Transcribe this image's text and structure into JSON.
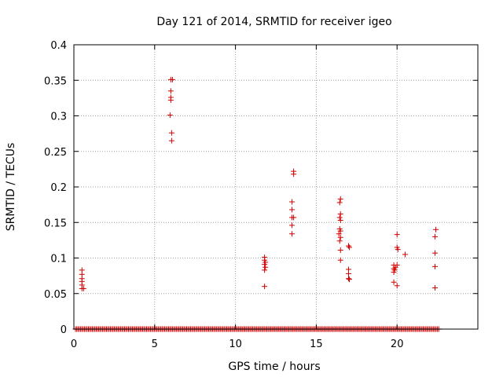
{
  "chart_data": {
    "type": "scatter",
    "title": "Day 121 of 2014, SRMTID for receiver igeo",
    "xlabel": "GPS time / hours",
    "ylabel": "SRMTID / TECUs",
    "xlim": [
      0,
      25
    ],
    "ylim": [
      0,
      0.4
    ],
    "x_ticks": [
      0,
      5,
      10,
      15,
      20
    ],
    "x_tick_labels": [
      "0",
      "5",
      "10",
      "15",
      "20"
    ],
    "y_ticks": [
      0,
      0.05,
      0.1,
      0.15,
      0.2,
      0.25,
      0.3,
      0.35,
      0.4
    ],
    "y_tick_labels": [
      "0",
      "0.05",
      "0.1",
      "0.15",
      "0.2",
      "0.25",
      "0.3",
      "0.35",
      "0.4"
    ],
    "grid": true,
    "marker": "+",
    "color": "#d00000",
    "series": [
      {
        "name": "SRMTID",
        "points": [
          [
            0.5,
            0.083
          ],
          [
            0.5,
            0.077
          ],
          [
            0.5,
            0.071
          ],
          [
            0.5,
            0.067
          ],
          [
            0.5,
            0.062
          ],
          [
            0.5,
            0.057
          ],
          [
            0.6,
            0.057
          ],
          [
            6.0,
            0.351
          ],
          [
            6.1,
            0.351
          ],
          [
            6.0,
            0.335
          ],
          [
            6.0,
            0.326
          ],
          [
            6.0,
            0.322
          ],
          [
            5.95,
            0.301
          ],
          [
            6.05,
            0.276
          ],
          [
            6.05,
            0.265
          ],
          [
            11.8,
            0.101
          ],
          [
            11.8,
            0.097
          ],
          [
            11.85,
            0.094
          ],
          [
            11.8,
            0.091
          ],
          [
            11.85,
            0.087
          ],
          [
            11.8,
            0.083
          ],
          [
            11.8,
            0.06
          ],
          [
            13.6,
            0.222
          ],
          [
            13.6,
            0.218
          ],
          [
            13.5,
            0.179
          ],
          [
            13.5,
            0.168
          ],
          [
            13.5,
            0.157
          ],
          [
            13.6,
            0.157
          ],
          [
            13.5,
            0.146
          ],
          [
            13.5,
            0.134
          ],
          [
            16.5,
            0.183
          ],
          [
            16.45,
            0.178
          ],
          [
            16.5,
            0.162
          ],
          [
            16.45,
            0.157
          ],
          [
            16.5,
            0.153
          ],
          [
            16.45,
            0.141
          ],
          [
            16.5,
            0.138
          ],
          [
            16.4,
            0.134
          ],
          [
            16.5,
            0.129
          ],
          [
            16.45,
            0.124
          ],
          [
            16.5,
            0.111
          ],
          [
            16.5,
            0.097
          ],
          [
            17.0,
            0.117
          ],
          [
            17.05,
            0.115
          ],
          [
            17.0,
            0.084
          ],
          [
            17.0,
            0.078
          ],
          [
            17.0,
            0.071
          ],
          [
            17.05,
            0.07
          ],
          [
            19.8,
            0.09
          ],
          [
            19.9,
            0.087
          ],
          [
            19.8,
            0.085
          ],
          [
            19.85,
            0.083
          ],
          [
            19.8,
            0.08
          ],
          [
            19.8,
            0.066
          ],
          [
            20.0,
            0.061
          ],
          [
            20.0,
            0.133
          ],
          [
            20.0,
            0.115
          ],
          [
            20.05,
            0.112
          ],
          [
            20.0,
            0.09
          ],
          [
            20.5,
            0.105
          ],
          [
            22.4,
            0.14
          ],
          [
            22.35,
            0.13
          ],
          [
            22.35,
            0.107
          ],
          [
            22.35,
            0.088
          ],
          [
            22.35,
            0.058
          ]
        ]
      },
      {
        "name": "zero-baseline",
        "x_range": [
          0.1,
          22.6
        ],
        "y": 0
      }
    ]
  }
}
